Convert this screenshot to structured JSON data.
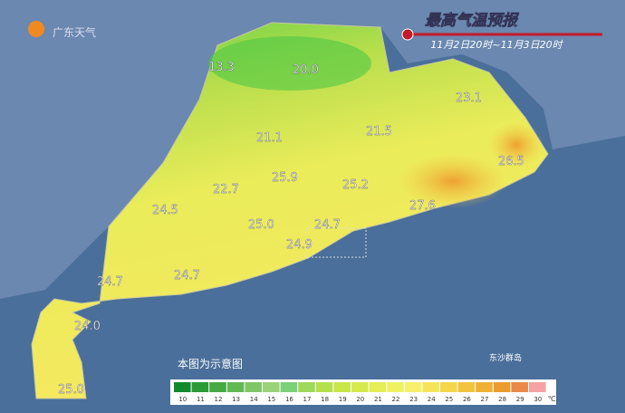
{
  "header": {
    "logo": "广东天气",
    "title": "最高气温预报",
    "subtitle": "11月2日20时~11月3日20时"
  },
  "temperatures": [
    "13.3",
    "20.0",
    "23.1",
    "21.1",
    "21.5",
    "26.5",
    "25.9",
    "25.2",
    "22.7",
    "24.5",
    "27.6",
    "25.0",
    "24.7",
    "24.9",
    "24.7",
    "24.7",
    "24.0",
    "25.0"
  ],
  "notes": {
    "disclaimer": "本图为示意图",
    "islands": "东沙群岛"
  },
  "legend": {
    "values": [
      10,
      11,
      12,
      13,
      14,
      15,
      16,
      17,
      18,
      19,
      20,
      21,
      22,
      23,
      24,
      25,
      26,
      27,
      28,
      29,
      30
    ],
    "colors": [
      "#118a2c",
      "#2a9a36",
      "#45aa44",
      "#62b954",
      "#7fc765",
      "#98d477",
      "#7cd07a",
      "#9fd95c",
      "#b5e04c",
      "#c8e648",
      "#d6ea4c",
      "#e4ee56",
      "#eef262",
      "#f6f06c",
      "#f6e458",
      "#f4d64a",
      "#f2c43e",
      "#f0b034",
      "#ec9c2e",
      "#ea8a4a",
      "#f4a2a2"
    ],
    "unit": "℃"
  }
}
